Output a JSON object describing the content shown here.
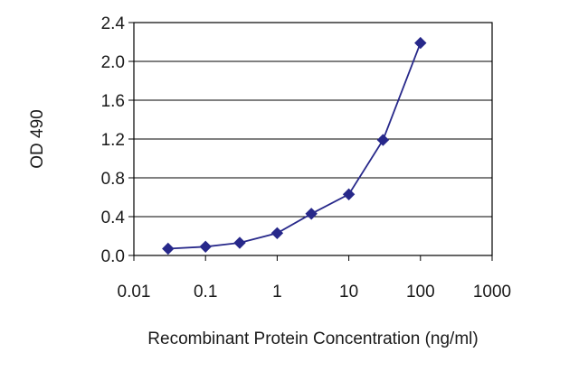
{
  "chart_data": {
    "type": "line",
    "title": "",
    "xlabel": "Recombinant Protein Concentration (ng/ml)",
    "ylabel": "OD 490",
    "x_scale": "log",
    "xlim": [
      0.01,
      1000
    ],
    "ylim": [
      0,
      2.4
    ],
    "x_ticks": [
      "0.01",
      "0.1",
      "1",
      "10",
      "100",
      "1000"
    ],
    "y_ticks": [
      "0.0",
      "0.4",
      "0.8",
      "1.2",
      "1.6",
      "2.0",
      "2.4"
    ],
    "grid": "horizontal",
    "legend": "none",
    "series": [
      {
        "color": "#27288a",
        "marker": "diamond",
        "x": [
          0.03,
          0.1,
          0.3,
          1,
          3,
          10,
          30,
          100
        ],
        "y": [
          0.07,
          0.09,
          0.13,
          0.23,
          0.43,
          0.63,
          1.19,
          2.19
        ]
      }
    ]
  }
}
